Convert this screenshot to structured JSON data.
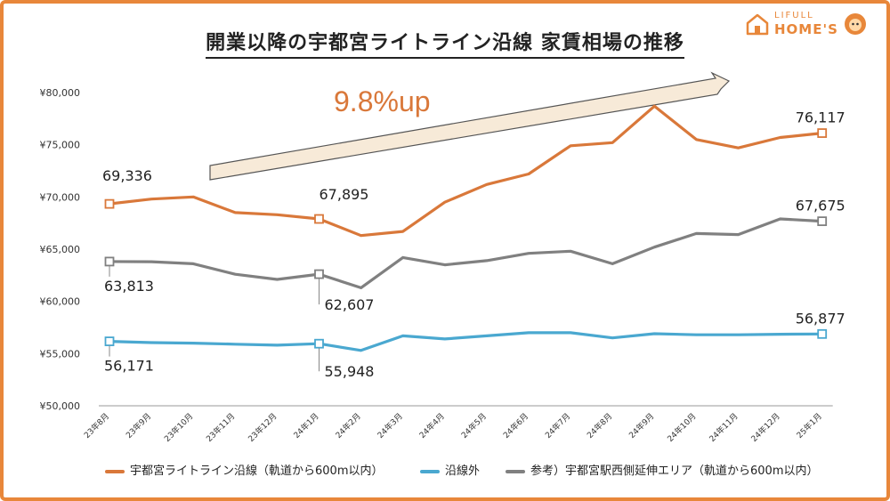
{
  "title": "開業以降の宇都宮ライトライン沿線 家賃相場の推移",
  "logo": {
    "line1": "LIFULL",
    "line2": "HOME'S"
  },
  "annotation": "9.8%up",
  "chart_data": {
    "type": "line",
    "categories": [
      "23年8月",
      "23年9月",
      "23年10月",
      "23年11月",
      "23年12月",
      "24年1月",
      "24年2月",
      "24年3月",
      "24年4月",
      "24年5月",
      "24年6月",
      "24年7月",
      "24年8月",
      "24年9月",
      "24年10月",
      "24年11月",
      "24年12月",
      "25年1月"
    ],
    "ylim": [
      50000,
      80000
    ],
    "yticks": [
      {
        "value": 80000,
        "label": "¥80,000"
      },
      {
        "value": 75000,
        "label": "¥75,000"
      },
      {
        "value": 70000,
        "label": "¥70,000"
      },
      {
        "value": 65000,
        "label": "¥65,000"
      },
      {
        "value": 60000,
        "label": "¥60,000"
      },
      {
        "value": 55000,
        "label": "¥55,000"
      },
      {
        "value": 50000,
        "label": "¥50,000"
      }
    ],
    "series": [
      {
        "name": "宇都宮ライトライン沿線（軌道から600m以内）",
        "color": "#d9783a",
        "values": [
          69336,
          69800,
          70000,
          68500,
          68300,
          67895,
          66300,
          66700,
          69500,
          71200,
          72200,
          74900,
          75200,
          78700,
          75500,
          74700,
          75700,
          76117
        ]
      },
      {
        "name": "沿線外",
        "color": "#4aa8d0",
        "values": [
          56171,
          56050,
          56000,
          55900,
          55800,
          55948,
          55300,
          56700,
          56400,
          56700,
          57000,
          57000,
          56500,
          56900,
          56800,
          56800,
          56850,
          56877
        ]
      },
      {
        "name": "参考）宇都宮駅西側延伸エリア（軌道から600m以内）",
        "color": "#808080",
        "values": [
          63813,
          63800,
          63600,
          62600,
          62100,
          62607,
          61300,
          64200,
          63500,
          63900,
          64600,
          64800,
          63600,
          65200,
          66500,
          66400,
          67900,
          67675
        ]
      }
    ],
    "data_labels": [
      {
        "series": 0,
        "index": 0,
        "text": "69,336"
      },
      {
        "series": 0,
        "index": 5,
        "text": "67,895"
      },
      {
        "series": 0,
        "index": 17,
        "text": "76,117"
      },
      {
        "series": 2,
        "index": 0,
        "text": "63,813"
      },
      {
        "series": 2,
        "index": 5,
        "text": "62,607"
      },
      {
        "series": 2,
        "index": 17,
        "text": "67,675"
      },
      {
        "series": 1,
        "index": 0,
        "text": "56,171"
      },
      {
        "series": 1,
        "index": 5,
        "text": "55,948"
      },
      {
        "series": 1,
        "index": 17,
        "text": "56,877"
      }
    ],
    "grid": false
  }
}
